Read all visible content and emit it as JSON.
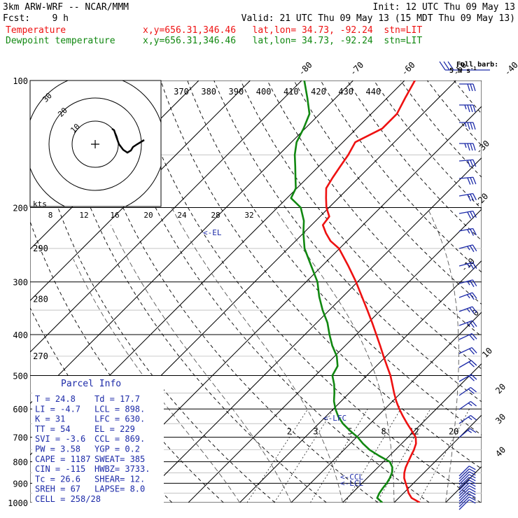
{
  "header": {
    "model": "3km ARW-WRF -- NCAR/MMM",
    "init": "Init: 12 UTC Thu 09 May 13",
    "fcst": "Fcst:    9 h",
    "valid": "Valid: 21 UTC Thu 09 May 13 (15 MDT Thu 09 May 13)",
    "temp_label": "Temperature",
    "dewp_label": "Dewpoint temperature",
    "location": "x,y=656.31,346.46   lat,lon= 34.73, -92.24  stn=LIT"
  },
  "colors": {
    "temperature": "#ee1111",
    "dewpoint": "#118811",
    "parcel_text": "#1c2aa8",
    "grid": "#000000",
    "barbs": "#1c2aa8"
  },
  "barb_legend": {
    "line1": "Full barb:",
    "line2": "5 m s",
    "exp": "-1"
  },
  "chart_data": {
    "type": "line",
    "diagram": "skew-T log-p",
    "x_unit": "°C",
    "y_unit": "hPa",
    "pressure_axis_labels": [
      "100",
      "200",
      "300",
      "400",
      "500",
      "600",
      "700",
      "800",
      "900",
      "1000"
    ],
    "pressure_range": [
      100,
      1000
    ],
    "isotherm_labels": [
      "-80",
      "-70",
      "-60",
      "-50",
      "-40",
      "-30",
      "-20",
      "-10",
      "0",
      "10",
      "20",
      "30",
      "40"
    ],
    "mixing_ratio_labels": [
      "2",
      "3",
      "5",
      "8",
      "12",
      "20"
    ],
    "theta_labels_upper": [
      "370",
      "380",
      "390",
      "400",
      "410",
      "420",
      "430",
      "440"
    ],
    "theta_labels_left": [
      "290",
      "280",
      "270"
    ],
    "hodograph_speed_labels": [
      "8",
      "12",
      "16",
      "20",
      "24",
      "28",
      "32"
    ],
    "hodograph_unit": "kts",
    "hodograph_ring_labels": [
      "10",
      "20",
      "30"
    ],
    "series": [
      {
        "name": "Temperature",
        "points": [
          [
            1000,
            25.0
          ],
          [
            975,
            22.5
          ],
          [
            950,
            21.0
          ],
          [
            925,
            19.8
          ],
          [
            900,
            18.5
          ],
          [
            875,
            17.2
          ],
          [
            850,
            16.2
          ],
          [
            825,
            15.4
          ],
          [
            800,
            14.8
          ],
          [
            775,
            14.2
          ],
          [
            750,
            13.6
          ],
          [
            725,
            12.8
          ],
          [
            700,
            11.5
          ],
          [
            675,
            9.4
          ],
          [
            650,
            7.2
          ],
          [
            625,
            5.0
          ],
          [
            600,
            2.8
          ],
          [
            575,
            0.7
          ],
          [
            550,
            -1.3
          ],
          [
            525,
            -3.3
          ],
          [
            500,
            -5.4
          ],
          [
            475,
            -7.9
          ],
          [
            450,
            -10.5
          ],
          [
            425,
            -13.2
          ],
          [
            400,
            -16.1
          ],
          [
            375,
            -19.2
          ],
          [
            350,
            -22.6
          ],
          [
            325,
            -26.3
          ],
          [
            300,
            -30.3
          ],
          [
            275,
            -34.9
          ],
          [
            250,
            -40.1
          ],
          [
            240,
            -43.2
          ],
          [
            230,
            -45.6
          ],
          [
            220,
            -47.8
          ],
          [
            210,
            -48.2
          ],
          [
            200,
            -50.5
          ],
          [
            190,
            -52.4
          ],
          [
            180,
            -54.3
          ],
          [
            170,
            -55.1
          ],
          [
            160,
            -55.8
          ],
          [
            150,
            -56.5
          ],
          [
            140,
            -57.6
          ],
          [
            130,
            -55.0
          ],
          [
            120,
            -55.0
          ],
          [
            110,
            -56.5
          ],
          [
            100,
            -58.0
          ]
        ]
      },
      {
        "name": "Dewpoint temperature",
        "points": [
          [
            1000,
            17.7
          ],
          [
            975,
            15.8
          ],
          [
            950,
            15.3
          ],
          [
            925,
            15.0
          ],
          [
            900,
            14.8
          ],
          [
            875,
            14.4
          ],
          [
            850,
            13.8
          ],
          [
            825,
            12.8
          ],
          [
            800,
            11.2
          ],
          [
            775,
            8.0
          ],
          [
            750,
            5.0
          ],
          [
            725,
            2.5
          ],
          [
            700,
            0.2
          ],
          [
            675,
            -2.6
          ],
          [
            650,
            -5.3
          ],
          [
            625,
            -7.6
          ],
          [
            600,
            -9.6
          ],
          [
            575,
            -11.4
          ],
          [
            550,
            -12.9
          ],
          [
            525,
            -14.6
          ],
          [
            500,
            -16.7
          ],
          [
            475,
            -17.5
          ],
          [
            450,
            -19.6
          ],
          [
            425,
            -22.5
          ],
          [
            400,
            -25.2
          ],
          [
            375,
            -27.9
          ],
          [
            350,
            -31.3
          ],
          [
            325,
            -34.6
          ],
          [
            300,
            -37.8
          ],
          [
            275,
            -42.1
          ],
          [
            250,
            -46.8
          ],
          [
            230,
            -50.0
          ],
          [
            215,
            -52.3
          ],
          [
            200,
            -55.5
          ],
          [
            190,
            -59.2
          ],
          [
            180,
            -60.2
          ],
          [
            170,
            -62.3
          ],
          [
            160,
            -64.5
          ],
          [
            150,
            -66.9
          ],
          [
            140,
            -69.0
          ],
          [
            130,
            -70.3
          ],
          [
            120,
            -72.0
          ],
          [
            110,
            -75.5
          ],
          [
            100,
            -79.5
          ]
        ]
      }
    ],
    "level_markers": [
      {
        "label": "<-EL",
        "pressure": 229
      },
      {
        "label": "<-LFC",
        "pressure": 630
      },
      {
        "label": "<-CCL",
        "pressure": 869
      },
      {
        "label": "<-LCL",
        "pressure": 898
      }
    ],
    "parcel_info": {
      "title": "Parcel Info",
      "rows": [
        [
          "T  =   24.8",
          "Td =  17.7"
        ],
        [
          "LI =   -4.7",
          "LCL =  898."
        ],
        [
          "K  =     31",
          "LFC = 630."
        ],
        [
          "TT =     54",
          "EL  =  229"
        ],
        [
          "SVI =  -3.6",
          "CCL = 869."
        ],
        [
          "PW =   3.58",
          "YGP =  0.2"
        ],
        [
          "CAPE =  1187",
          "SWEAT=  385"
        ],
        [
          "CIN =  -115",
          "HWBZ= 3733."
        ],
        [
          "Tc =   26.6",
          "SHEAR=  12."
        ],
        [
          "SREH =   67",
          "LAPSE=  8.0"
        ],
        [
          "CELL = 258/28",
          ""
        ]
      ]
    }
  }
}
